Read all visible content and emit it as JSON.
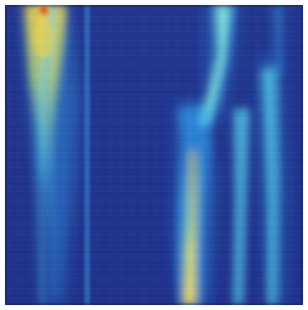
{
  "image": {
    "kind": "heatmap-like blurred spectrogram texture",
    "colormap": [
      "#1f2f86",
      "#2a57b7",
      "#2e8dde",
      "#54d1ef",
      "#9ee5c6",
      "#d8f06a",
      "#f2d34a",
      "#e46a2e",
      "#b51f1f"
    ],
    "background": "#ffffff"
  }
}
